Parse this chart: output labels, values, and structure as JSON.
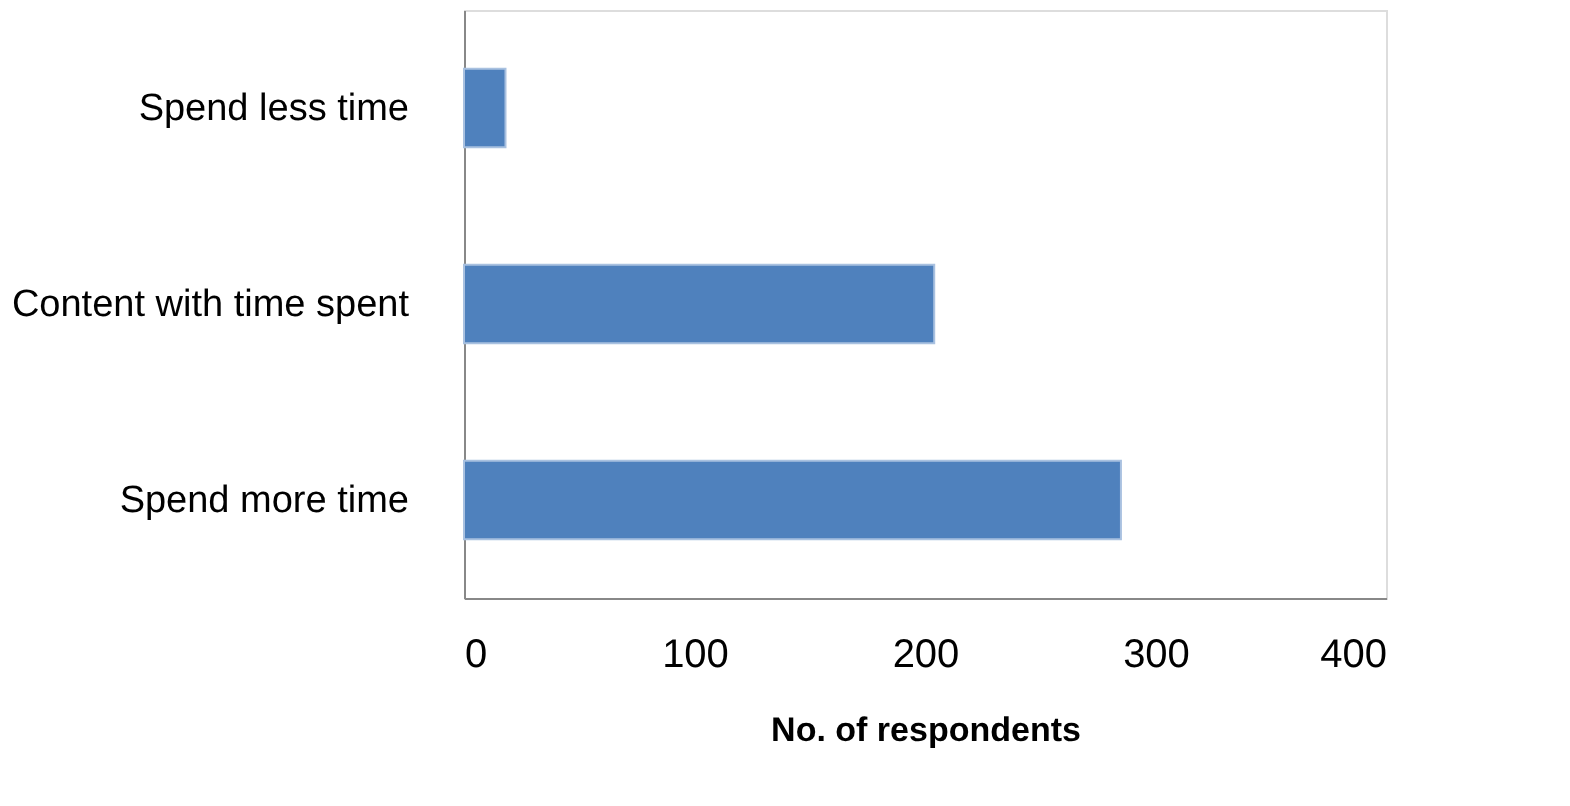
{
  "chart_data": {
    "type": "bar",
    "orientation": "horizontal",
    "categories": [
      "Spend less time",
      "Content with time spent",
      "Spend more time"
    ],
    "values": [
      18,
      204,
      285
    ],
    "color": "#4f81bd",
    "xlabel": "No. of respondents",
    "xlim": [
      0,
      400
    ],
    "xticks": [
      0,
      100,
      200,
      300,
      400
    ],
    "grid": false
  }
}
